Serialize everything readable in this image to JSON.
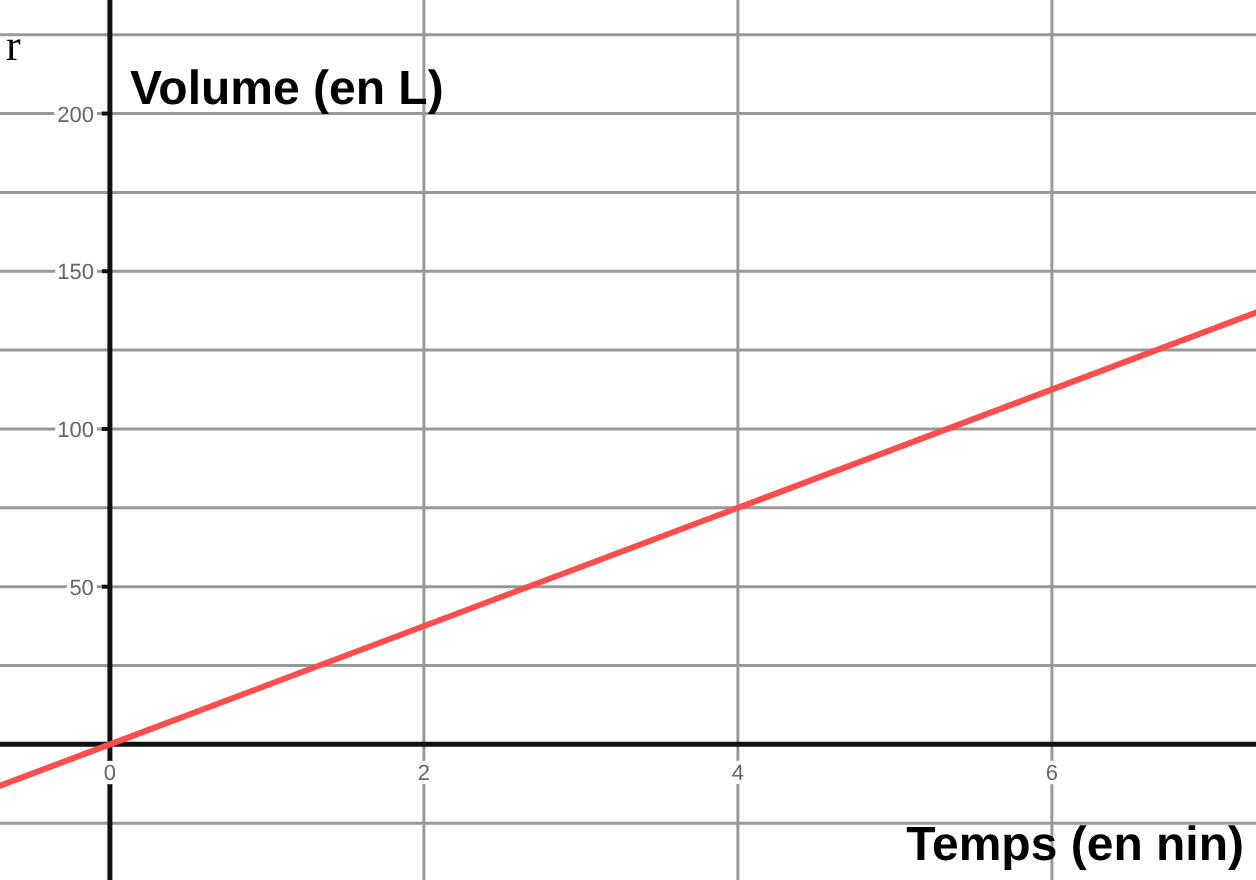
{
  "chart_data": {
    "type": "line",
    "xlabel": "Temps (en nin)",
    "ylabel": "Volume (en L)",
    "annotations": [
      "r"
    ],
    "xlim": [
      -0.7,
      7.3
    ],
    "ylim": [
      -43,
      236
    ],
    "xticks": [
      0,
      2,
      4,
      6
    ],
    "yticks": [
      {
        "value": -25,
        "label": null
      },
      {
        "value": 0,
        "label": null
      },
      {
        "value": 25,
        "label": null
      },
      50,
      {
        "value": 75,
        "label": null
      },
      100,
      {
        "value": 125,
        "label": null
      },
      150,
      {
        "value": 175,
        "label": null
      },
      200,
      {
        "value": 225,
        "label": null
      }
    ],
    "grid": true,
    "marker": "none",
    "line_style": "solid",
    "series": [
      {
        "color": "#ff4d4d",
        "x": [
          -0.7,
          0,
          4,
          7.3
        ],
        "values": [
          -13.1,
          0,
          75,
          136.9
        ]
      }
    ]
  }
}
